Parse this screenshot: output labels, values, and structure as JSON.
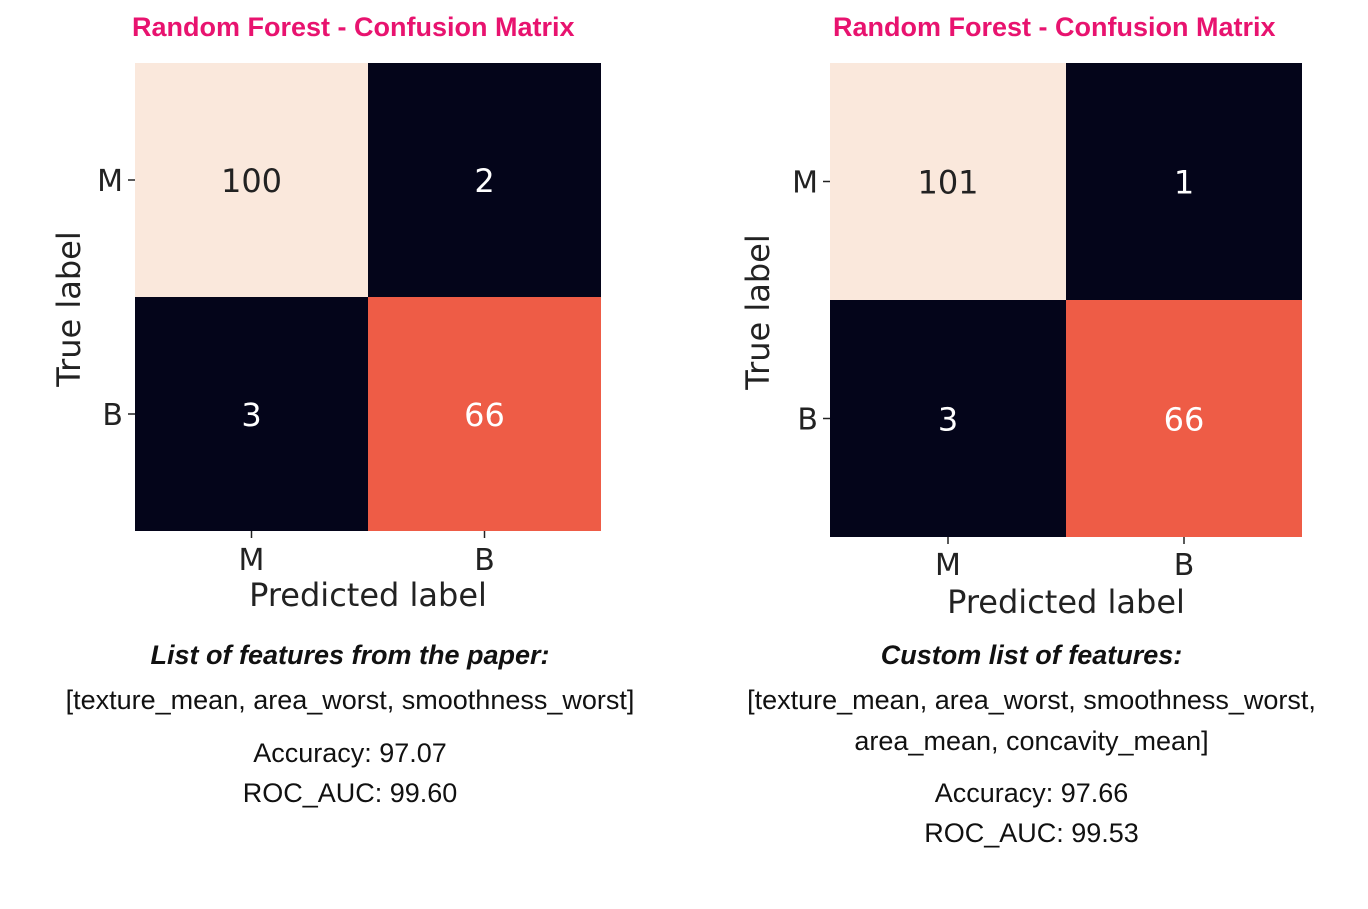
{
  "chart_data": [
    {
      "type": "heatmap",
      "title": "Random Forest - Confusion Matrix",
      "xlabel": "Predicted label",
      "ylabel": "True label",
      "x_categories": [
        "M",
        "B"
      ],
      "y_categories": [
        "M",
        "B"
      ],
      "values": [
        [
          100,
          2
        ],
        [
          3,
          66
        ]
      ],
      "cell_colors": [
        [
          "#fae8dc",
          "#04051a"
        ],
        [
          "#04051a",
          "#ee5c46"
        ]
      ],
      "text_colors": [
        [
          "#222222",
          "#ffffff"
        ],
        [
          "#ffffff",
          "#ffffff"
        ]
      ]
    },
    {
      "type": "heatmap",
      "title": "Random Forest - Confusion Matrix",
      "xlabel": "Predicted label",
      "ylabel": "True label",
      "x_categories": [
        "M",
        "B"
      ],
      "y_categories": [
        "M",
        "B"
      ],
      "values": [
        [
          101,
          1
        ],
        [
          3,
          66
        ]
      ],
      "cell_colors": [
        [
          "#fae8dc",
          "#04051a"
        ],
        [
          "#04051a",
          "#ee5c46"
        ]
      ],
      "text_colors": [
        [
          "#222222",
          "#ffffff"
        ],
        [
          "#ffffff",
          "#ffffff"
        ]
      ]
    }
  ],
  "left": {
    "features_heading": "List of features from the paper:",
    "features_lines": [
      "[texture_mean, area_worst, smoothness_worst]"
    ],
    "accuracy": "Accuracy: 97.07",
    "roc_auc": "ROC_AUC: 99.60"
  },
  "right": {
    "features_heading": "Custom list of features:",
    "features_lines": [
      "[texture_mean, area_worst, smoothness_worst,",
      "area_mean, concavity_mean]"
    ],
    "accuracy": "Accuracy: 97.66",
    "roc_auc": "ROC_AUC: 99.53"
  },
  "colors": {
    "title": "#e8136f"
  }
}
